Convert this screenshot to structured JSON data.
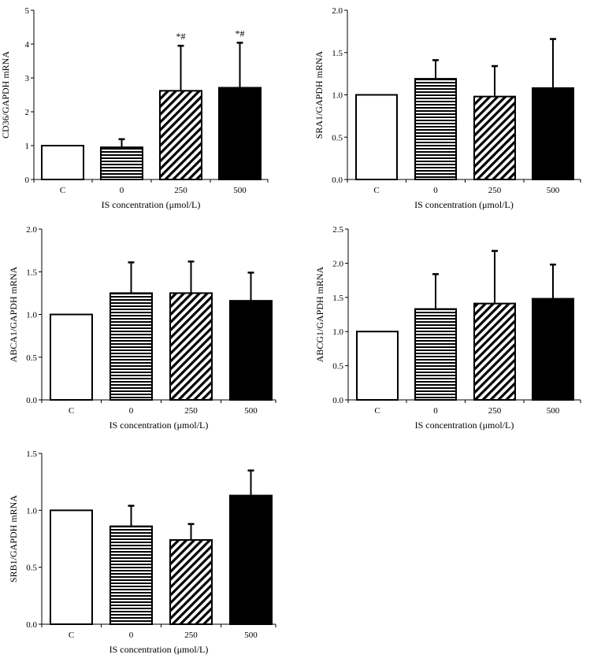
{
  "figure": {
    "colors": {
      "axis": "#000000",
      "bar_fill_solid": "#000000",
      "bar_fill_open": "#ffffff"
    }
  },
  "chart_data": [
    {
      "type": "bar",
      "ylabel": "CD36/GAPDH mRNA",
      "xlabel": "IS concentration (μmol/L)",
      "categories": [
        "C",
        "0",
        "250",
        "500"
      ],
      "patterns": [
        "open",
        "horizontal-lines",
        "diagonal-hatch",
        "solid"
      ],
      "values": [
        1.0,
        0.95,
        2.62,
        2.71
      ],
      "errors": [
        0.0,
        0.24,
        1.33,
        1.33
      ],
      "annotations": [
        "",
        "",
        "*#",
        "*#"
      ],
      "ylim": [
        0,
        5
      ],
      "yticks": [
        "0",
        "1",
        "2",
        "3",
        "4",
        "5"
      ]
    },
    {
      "type": "bar",
      "ylabel": "SRA1/GAPDH mRNA",
      "xlabel": "IS concentration (μmol/L)",
      "categories": [
        "C",
        "0",
        "250",
        "500"
      ],
      "patterns": [
        "open",
        "horizontal-lines",
        "diagonal-hatch",
        "solid"
      ],
      "values": [
        1.0,
        1.19,
        0.98,
        1.08
      ],
      "errors": [
        0.0,
        0.22,
        0.36,
        0.58
      ],
      "annotations": [
        "",
        "",
        "",
        ""
      ],
      "ylim": [
        0,
        2
      ],
      "yticks": [
        "0.0",
        "0.5",
        "1.0",
        "1.5",
        "2.0"
      ]
    },
    {
      "type": "bar",
      "ylabel": "ABCA1/GAPDH mRNA",
      "xlabel": "IS concentration (μmol/L)",
      "categories": [
        "C",
        "0",
        "250",
        "500"
      ],
      "patterns": [
        "open",
        "horizontal-lines",
        "diagonal-hatch",
        "solid"
      ],
      "values": [
        1.0,
        1.25,
        1.25,
        1.16
      ],
      "errors": [
        0.0,
        0.36,
        0.37,
        0.33
      ],
      "annotations": [
        "",
        "",
        "",
        ""
      ],
      "ylim": [
        0,
        2
      ],
      "yticks": [
        "0.0",
        "0.5",
        "1.0",
        "1.5",
        "2.0"
      ]
    },
    {
      "type": "bar",
      "ylabel": "ABCG1/GAPDH mRNA",
      "xlabel": "IS concentration (μmol/L)",
      "categories": [
        "C",
        "0",
        "250",
        "500"
      ],
      "patterns": [
        "open",
        "horizontal-lines",
        "diagonal-hatch",
        "solid"
      ],
      "values": [
        1.0,
        1.33,
        1.41,
        1.48
      ],
      "errors": [
        0.0,
        0.51,
        0.77,
        0.5
      ],
      "annotations": [
        "",
        "",
        "",
        ""
      ],
      "ylim": [
        0,
        2.5
      ],
      "yticks": [
        "0.0",
        "0.5",
        "1.0",
        "1.5",
        "2.0",
        "2.5"
      ]
    },
    {
      "type": "bar",
      "ylabel": "SRB1/GAPDH mRNA",
      "xlabel": "IS concentration (μmol/L)",
      "categories": [
        "C",
        "0",
        "250",
        "500"
      ],
      "patterns": [
        "open",
        "horizontal-lines",
        "diagonal-hatch",
        "solid"
      ],
      "values": [
        1.0,
        0.86,
        0.74,
        1.13
      ],
      "errors": [
        0.0,
        0.18,
        0.14,
        0.22
      ],
      "annotations": [
        "",
        "",
        "",
        ""
      ],
      "ylim": [
        0,
        1.5
      ],
      "yticks": [
        "0.0",
        "0.5",
        "1.0",
        "1.5"
      ]
    }
  ]
}
